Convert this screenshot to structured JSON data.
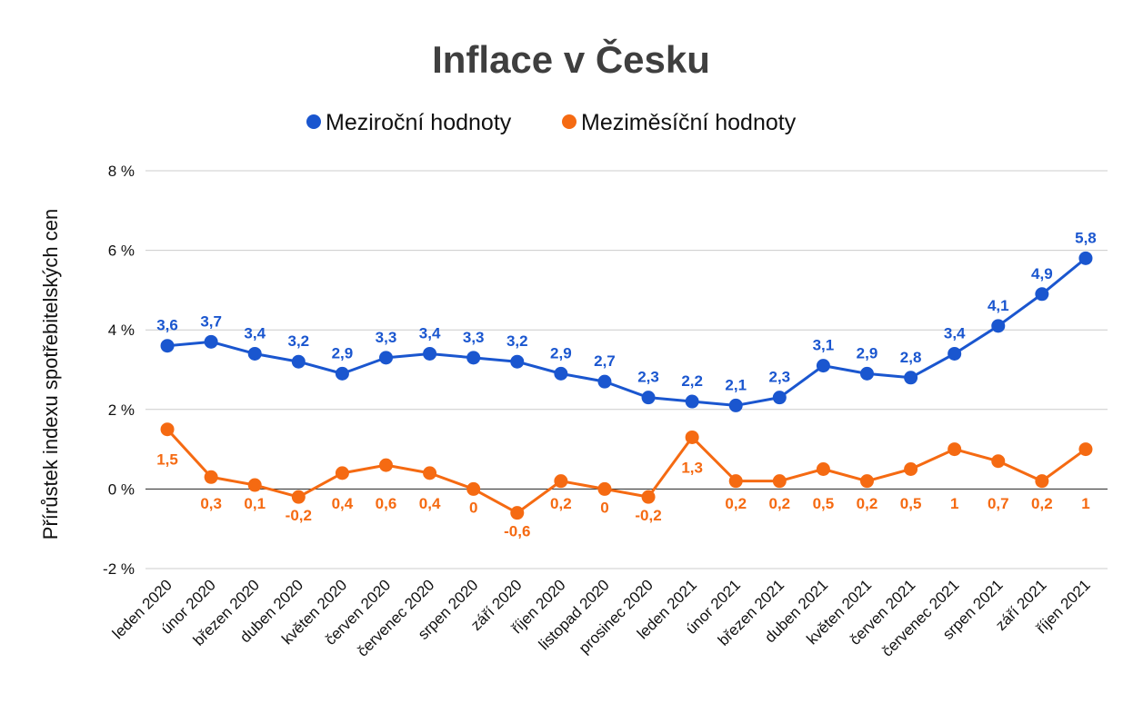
{
  "chart_data": {
    "type": "line",
    "title": "Inflace v Česku",
    "ylabel": "Přírůstek indexu spotřebitelských cen",
    "xlabel": "",
    "ylim": [
      -2,
      8
    ],
    "yticks": [
      -2,
      0,
      2,
      4,
      6,
      8
    ],
    "ytick_labels": [
      "-2 %",
      "0 %",
      "2 %",
      "4 %",
      "6 %",
      "8 %"
    ],
    "grid": true,
    "legend_position": "top",
    "categories": [
      "leden 2020",
      "únor 2020",
      "březen 2020",
      "duben 2020",
      "květen 2020",
      "červen 2020",
      "červenec 2020",
      "srpen 2020",
      "září 2020",
      "říjen 2020",
      "listopad 2020",
      "prosinec 2020",
      "leden 2021",
      "únor 2021",
      "březen 2021",
      "duben 2021",
      "květen 2021",
      "červen 2021",
      "červenec 2021",
      "srpen 2021",
      "září 2021",
      "říjen 2021"
    ],
    "series": [
      {
        "name": "Meziroční hodnoty",
        "color": "#1a56cf",
        "values": [
          3.6,
          3.7,
          3.4,
          3.2,
          2.9,
          3.3,
          3.4,
          3.3,
          3.2,
          2.9,
          2.7,
          2.3,
          2.2,
          2.1,
          2.3,
          3.1,
          2.9,
          2.8,
          3.4,
          4.1,
          4.9,
          5.8
        ],
        "labels": [
          "3,6",
          "3,7",
          "3,4",
          "3,2",
          "2,9",
          "3,3",
          "3,4",
          "3,3",
          "3,2",
          "2,9",
          "2,7",
          "2,3",
          "2,2",
          "2,1",
          "2,3",
          "3,1",
          "2,9",
          "2,8",
          "3,4",
          "4,1",
          "4,9",
          "5,8"
        ]
      },
      {
        "name": "Meziměsíční hodnoty",
        "color": "#f56a12",
        "values": [
          1.5,
          0.3,
          0.1,
          -0.2,
          0.4,
          0.6,
          0.4,
          0,
          -0.6,
          0.2,
          0,
          -0.2,
          1.3,
          0.2,
          0.2,
          0.5,
          0.2,
          0.5,
          1,
          0.7,
          0.2,
          1
        ],
        "labels": [
          "1,5",
          "0,3",
          "0,1",
          "-0,2",
          "0,4",
          "0,6",
          "0,4",
          "0",
          "-0,6",
          "0,2",
          "0",
          "-0,2",
          "1,3",
          "0,2",
          "0,2",
          "0,5",
          "0,2",
          "0,5",
          "1",
          "0,7",
          "0,2",
          "1"
        ]
      }
    ]
  }
}
